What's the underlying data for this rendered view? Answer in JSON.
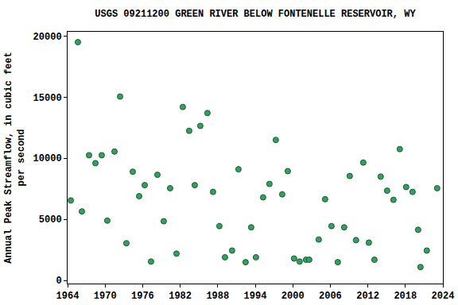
{
  "chart_data": {
    "type": "scatter",
    "title": "USGS 09211200 GREEN RIVER BELOW FONTENELLE RESERVOIR, WY",
    "y_label": "Annual Peak Streamflow, in cubic feet\nper second",
    "x": [
      1964.51,
      1965.65,
      1966.29,
      1967.43,
      1968.45,
      1969.46,
      1970.35,
      1971.5,
      1972.39,
      1973.4,
      1974.42,
      1975.44,
      1976.33,
      1977.34,
      1978.36,
      1979.37,
      1980.39,
      1981.41,
      1982.42,
      1983.44,
      1984.33,
      1985.22,
      1986.36,
      1987.25,
      1988.27,
      1989.16,
      1990.3,
      1991.32,
      1992.46,
      1993.35,
      1994.11,
      1995.26,
      1996.27,
      1997.29,
      1998.31,
      1999.2,
      2000.21,
      2001.1,
      2002.12,
      2002.63,
      2004.15,
      2005.17,
      2006.19,
      2007.2,
      2008.22,
      2009.11,
      2010.12,
      2011.27,
      2012.16,
      2013.05,
      2014.06,
      2015.08,
      2016.1,
      2017.11,
      2018.13,
      2019.15,
      2020.04,
      2020.42,
      2021.43,
      2023.08
    ],
    "values": [
      6550,
      19500,
      5650,
      10250,
      9600,
      10250,
      4900,
      10550,
      15050,
      3050,
      8900,
      6900,
      7800,
      1550,
      8650,
      4850,
      7550,
      2200,
      14200,
      12250,
      7800,
      12650,
      13700,
      7250,
      4450,
      1900,
      2450,
      9100,
      1500,
      4350,
      1900,
      6800,
      7900,
      11500,
      7050,
      8950,
      1800,
      1550,
      1700,
      1700,
      3350,
      6650,
      4450,
      1500,
      4350,
      8550,
      3300,
      9650,
      3100,
      1700,
      8500,
      7350,
      6600,
      10750,
      7650,
      7250,
      4150,
      1100,
      2450,
      7550
    ],
    "color": "#33a060",
    "marker": "circle",
    "xlim": [
      1964,
      2024
    ],
    "xticks": [
      1964,
      1970,
      1976,
      1982,
      1988,
      1994,
      2000,
      2006,
      2012,
      2018,
      2024
    ],
    "ylim": [
      -250,
      20350
    ],
    "yticks": [
      0,
      5000,
      10000,
      15000,
      20000
    ],
    "grid": false
  }
}
